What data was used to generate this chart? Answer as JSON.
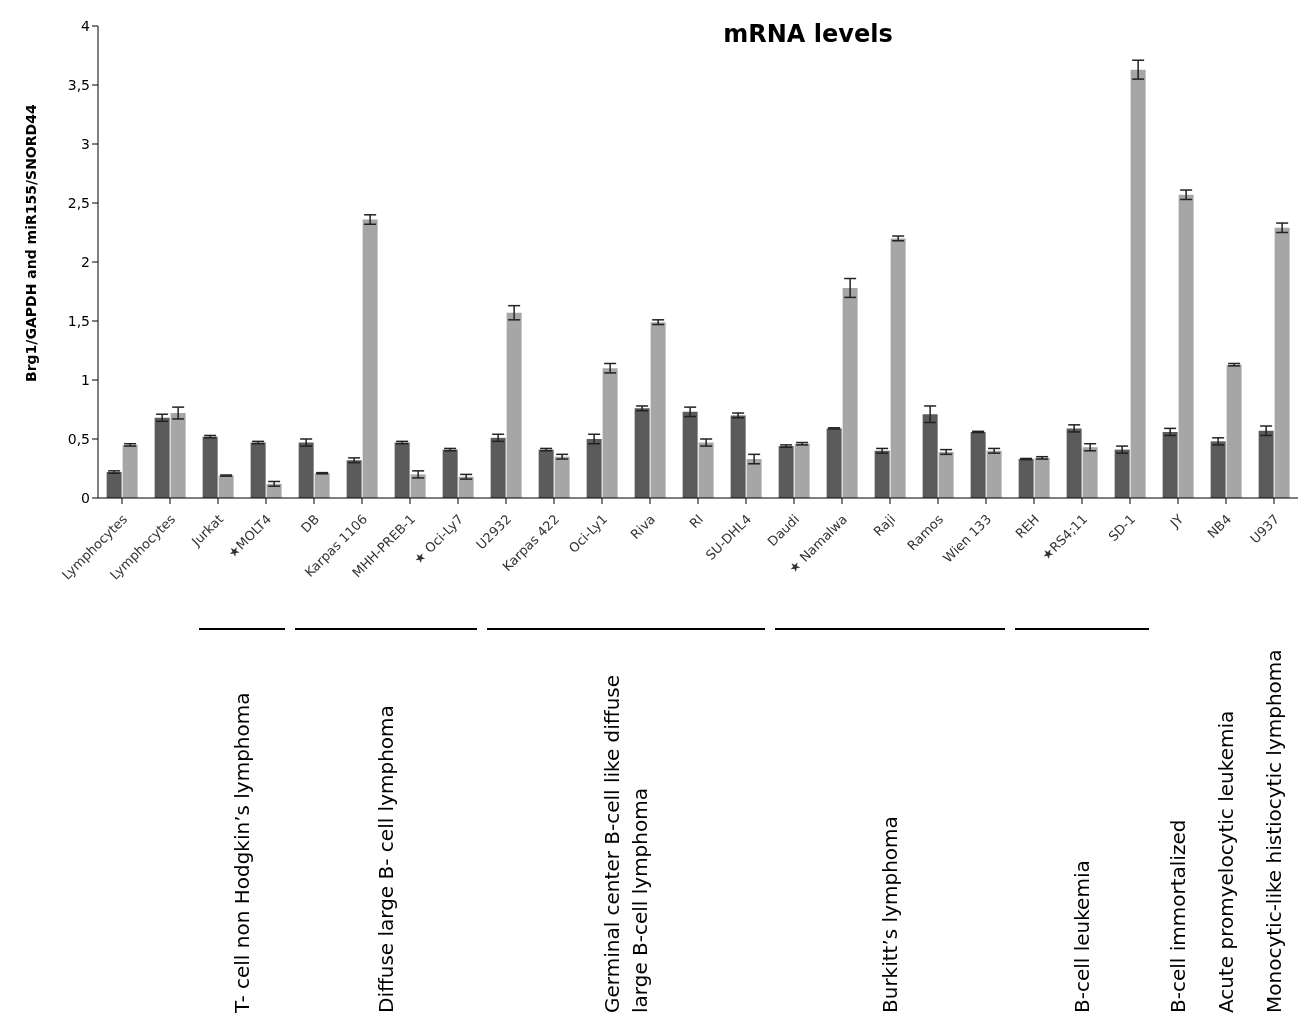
{
  "chart_data": {
    "type": "bar",
    "title": "mRNA levels",
    "ylabel": "Brg1/GAPDH and miR155/SNORD44",
    "categories": [
      "Lymphocytes",
      "Lymphocytes",
      "Jurkat",
      "★MOLT4",
      "DB",
      "Karpas 1106",
      "MHH-PREB-1",
      "★ Oci-Ly7",
      "U2932",
      "Karpas 422",
      "Oci-Ly1",
      "Riva",
      "RI",
      "SU-DHL4",
      "Daudi",
      "★ Namalwa",
      "Raji",
      "Ramos",
      "Wien 133",
      "REH",
      "★RS4;11",
      "SD-1",
      "JY",
      "NB4",
      "U937"
    ],
    "series": [
      {
        "color": "#5b5b5b",
        "values": [
          0.22,
          0.68,
          0.52,
          0.47,
          0.47,
          0.32,
          0.47,
          0.41,
          0.51,
          0.41,
          0.5,
          0.76,
          0.73,
          0.7,
          0.44,
          0.59,
          0.4,
          0.71,
          0.56,
          0.33,
          0.59,
          0.41,
          0.56,
          0.48,
          0.57
        ],
        "errors": [
          0.01,
          0.03,
          0.01,
          0.01,
          0.03,
          0.02,
          0.01,
          0.01,
          0.03,
          0.01,
          0.04,
          0.02,
          0.04,
          0.02,
          0.01,
          0.005,
          0.02,
          0.07,
          0.005,
          0.005,
          0.03,
          0.03,
          0.03,
          0.03,
          0.04
        ]
      },
      {
        "color": "#a6a6a6",
        "values": [
          0.45,
          0.72,
          0.19,
          0.12,
          0.21,
          2.36,
          0.2,
          0.18,
          1.57,
          0.35,
          1.1,
          1.49,
          0.47,
          0.33,
          0.46,
          1.78,
          2.2,
          0.39,
          0.4,
          0.34,
          0.43,
          3.63,
          2.57,
          1.13,
          2.29
        ],
        "errors": [
          0.01,
          0.05,
          0.005,
          0.02,
          0.005,
          0.04,
          0.03,
          0.02,
          0.06,
          0.02,
          0.04,
          0.02,
          0.03,
          0.04,
          0.01,
          0.08,
          0.02,
          0.02,
          0.02,
          0.01,
          0.03,
          0.08,
          0.04,
          0.01,
          0.04
        ]
      }
    ],
    "ylim": [
      0,
      4
    ],
    "yticks": [
      0,
      {
        "value": 0.5,
        "label": "0,5"
      },
      1,
      {
        "value": 1.5,
        "label": "1,5"
      },
      2,
      {
        "value": 2.5,
        "label": "2,5"
      },
      3,
      {
        "value": 3.5,
        "label": "3,5"
      },
      4
    ],
    "grid": false,
    "legend": false,
    "annotations": [
      "T- cell non Hodgkin’s lymphoma",
      "Diffuse large B- cell lymphoma",
      "Germinal center B-cell like diffuse large B-cell lymphoma",
      "Burkitt’s lymphoma",
      "B-cell leukemia",
      "B-cell immortalized",
      "Acute promyelocytic leukemia",
      "Monocytic-like histiocytic lymphoma"
    ]
  }
}
